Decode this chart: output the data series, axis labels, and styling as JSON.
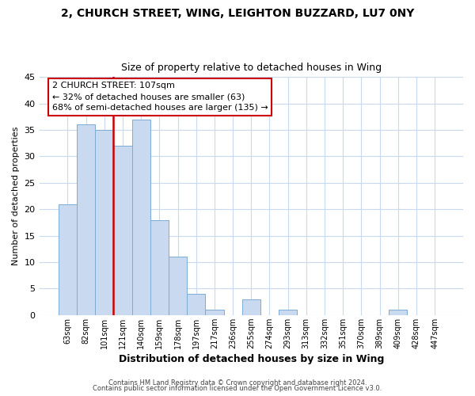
{
  "title1": "2, CHURCH STREET, WING, LEIGHTON BUZZARD, LU7 0NY",
  "title2": "Size of property relative to detached houses in Wing",
  "xlabel": "Distribution of detached houses by size in Wing",
  "ylabel": "Number of detached properties",
  "bin_labels": [
    "63sqm",
    "82sqm",
    "101sqm",
    "121sqm",
    "140sqm",
    "159sqm",
    "178sqm",
    "197sqm",
    "217sqm",
    "236sqm",
    "255sqm",
    "274sqm",
    "293sqm",
    "313sqm",
    "332sqm",
    "351sqm",
    "370sqm",
    "389sqm",
    "409sqm",
    "428sqm",
    "447sqm"
  ],
  "bar_values": [
    21,
    36,
    35,
    32,
    37,
    18,
    11,
    4,
    1,
    0,
    3,
    0,
    1,
    0,
    0,
    0,
    0,
    0,
    1,
    0,
    0
  ],
  "bar_color": "#c8d9f0",
  "bar_edge_color": "#7bacd4",
  "vline_color": "#cc0000",
  "vline_pos": 2.5,
  "ylim": [
    0,
    45
  ],
  "yticks": [
    0,
    5,
    10,
    15,
    20,
    25,
    30,
    35,
    40,
    45
  ],
  "annotation_title": "2 CHURCH STREET: 107sqm",
  "annotation_line1": "← 32% of detached houses are smaller (63)",
  "annotation_line2": "68% of semi-detached houses are larger (135) →",
  "annotation_box_color": "#ffffff",
  "annotation_box_edge": "#cc0000",
  "footer1": "Contains HM Land Registry data © Crown copyright and database right 2024.",
  "footer2": "Contains public sector information licensed under the Open Government Licence v3.0.",
  "background_color": "#ffffff",
  "grid_color": "#c8d9f0"
}
